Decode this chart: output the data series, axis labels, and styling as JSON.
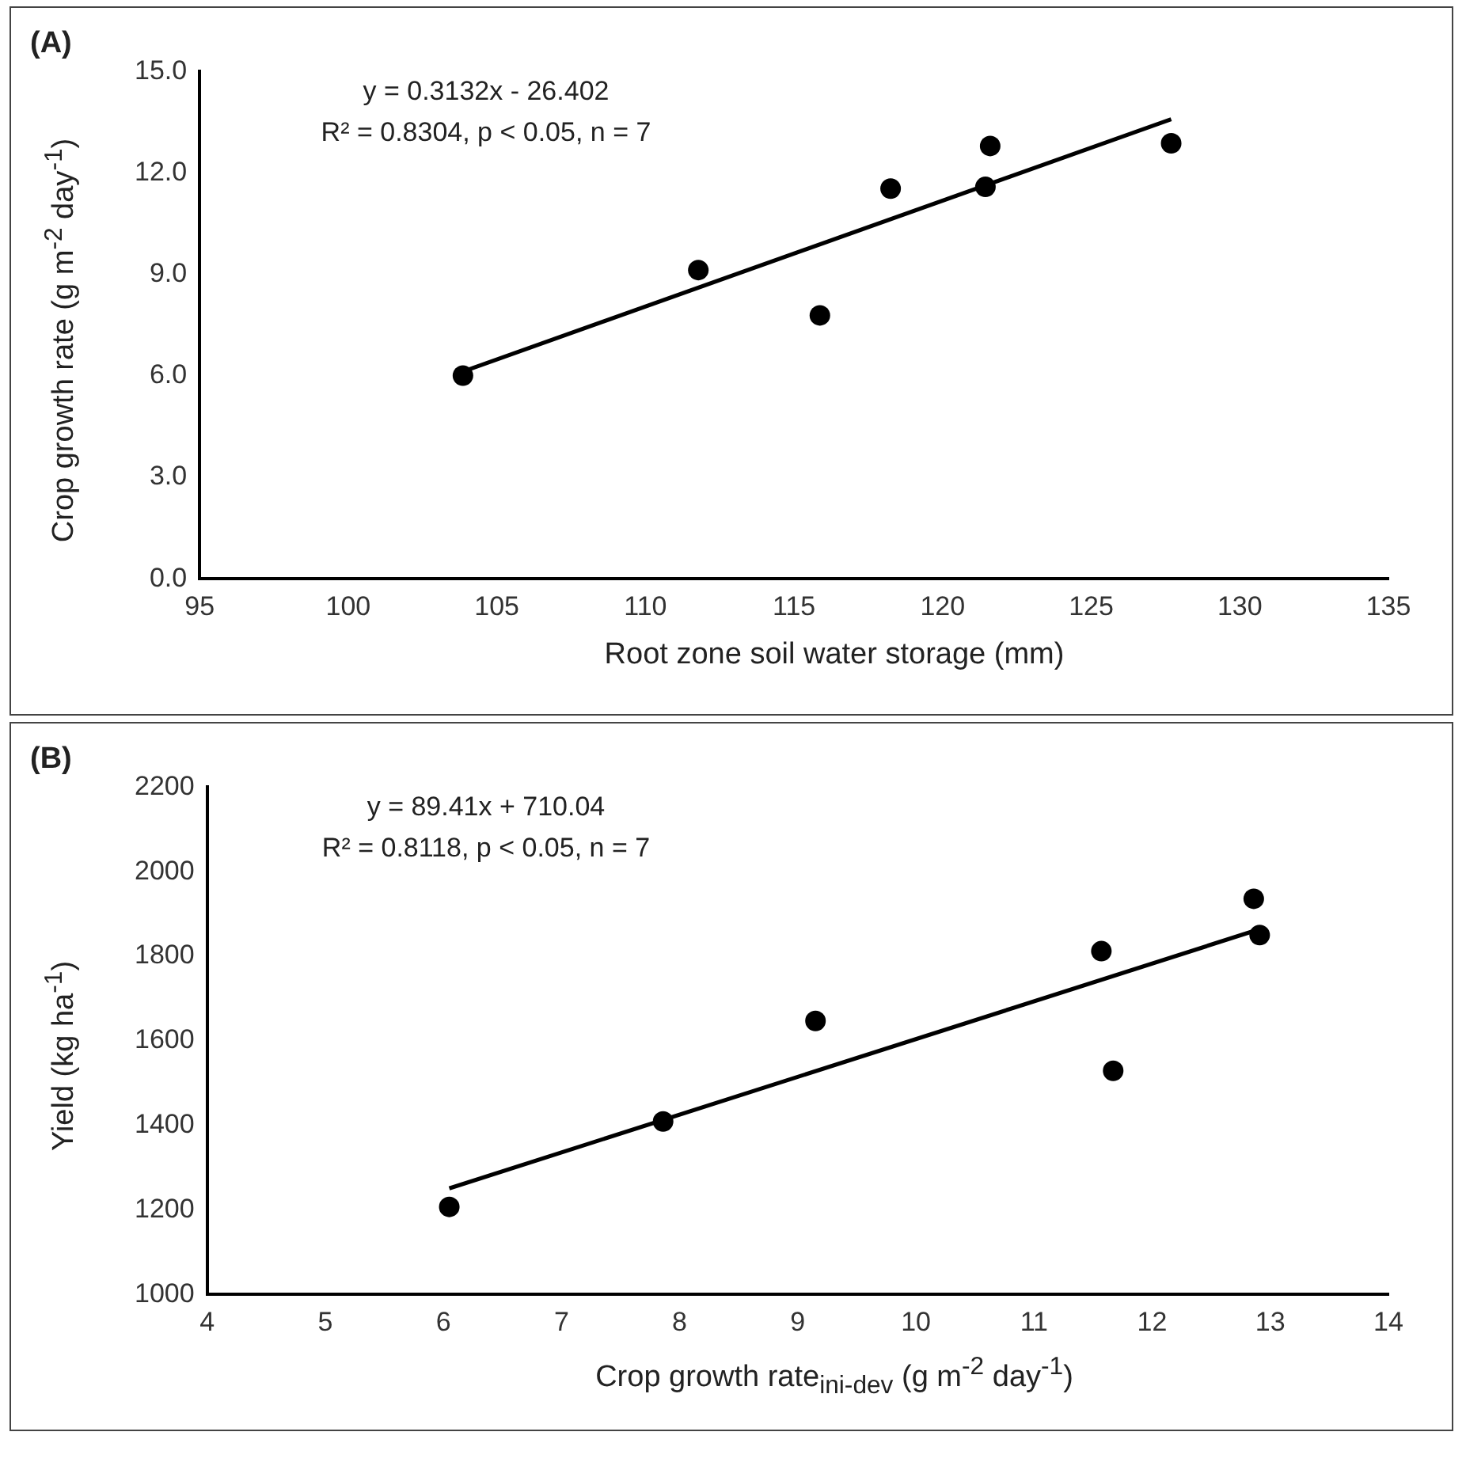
{
  "chart_data": [
    {
      "type": "scatter",
      "xlabel": "Root zone soil water storage (mm)",
      "ylabel": "Crop growth rate (g m$^{-2}$ day$^{-1}$)",
      "annotations": [
        "(A)",
        "y = 0.3132x - 26.402",
        "R² = 0.8304, p < 0.05, n = 7"
      ],
      "series": [
        {
          "x": [
            103.86,
            111.78,
            115.87,
            118.25,
            121.44,
            121.6,
            127.69
          ],
          "values": [
            6.01,
            9.13,
            7.79,
            11.54,
            11.59,
            12.8,
            12.88
          ],
          "color": "#000000",
          "marker": "circle"
        },
        {
          "type": "line",
          "x": [
            103.86,
            127.69
          ],
          "values": [
            6.13,
            13.59
          ],
          "color": "#000000",
          "marker": "none"
        }
      ],
      "xlim": [
        95,
        135
      ],
      "xticks": [
        95,
        100,
        105,
        110,
        115,
        120,
        125,
        130,
        135
      ],
      "ylim": [
        0,
        15
      ],
      "yticks": [
        {
          "value": 0,
          "label": "0.0"
        },
        {
          "value": 3,
          "label": "3.0"
        },
        {
          "value": 6,
          "label": "6.0"
        },
        {
          "value": 9,
          "label": "9.0"
        },
        {
          "value": 12,
          "label": "12.0"
        },
        {
          "value": 15,
          "label": "15.0"
        }
      ],
      "legend": false
    },
    {
      "type": "scatter",
      "xlabel": "Crop growth rate$_{ini-dev}$ (g m$^{-2}$ day$^{-1}$)",
      "ylabel": "Yield (kg ha$^{-1}$)",
      "annotations": [
        "(B)",
        "y = 89.41x + 710.04",
        "R² = 0.8118, p < 0.05, n = 7"
      ],
      "series": [
        {
          "x": [
            6.05,
            7.86,
            9.15,
            11.57,
            11.67,
            12.86,
            12.91
          ],
          "values": [
            1207,
            1409,
            1647,
            1812,
            1529,
            1936,
            1850
          ],
          "color": "#000000",
          "marker": "circle"
        },
        {
          "type": "line",
          "x": [
            6.05,
            12.91
          ],
          "values": [
            1251,
            1864
          ],
          "color": "#000000",
          "marker": "none"
        }
      ],
      "xlim": [
        4,
        14
      ],
      "xticks": [
        4,
        5,
        6,
        7,
        8,
        9,
        10,
        11,
        12,
        13,
        14
      ],
      "ylim": [
        1000,
        2200
      ],
      "yticks": [
        1000,
        1200,
        1400,
        1600,
        1800,
        2000,
        2200
      ],
      "legend": false
    }
  ]
}
